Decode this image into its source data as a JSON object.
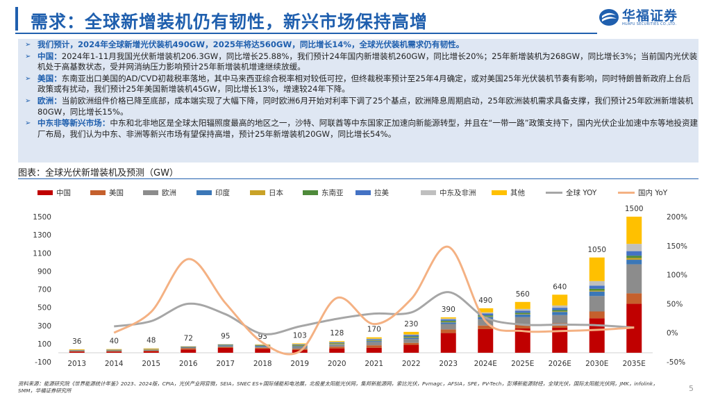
{
  "header": {
    "title": "需求：全球新增装机仍有韧性，新兴市场保持高增",
    "logo_cn": "华福证券",
    "logo_en": "HUAFU SECURITIES CO.,LTD."
  },
  "bullets": [
    {
      "label": "",
      "text": "我们预计，2024年全球新增光伏装机490GW，2025年将达560GW，同比增长14%，全球光伏装机需求仍有韧性。"
    },
    {
      "label": "中国：",
      "text": "2024年1-11月我国光伏新增装机206.3GW，同比增长25.88%，我们预计24年国内新增装机260GW，同比增长20%；25年新增装机为268GW，同比增长3%；当前国内光伏装机处于高基数状态，受并网消纳压力影响预计25年新增装机增速继续放缓。"
    },
    {
      "label": "美国：",
      "text": "东南亚出口美国的AD/CVD初裁税率落地，其中马来西亚综合税率相对较低可控，但终裁税率预计至25年4月确定，或对美国25年光伏装机节奏有影响，同时特朗普新政府上台后政策或有扰动，我们预计25年美国新增装机45GW，同比增长13%，增速较24年下降。"
    },
    {
      "label": "欧洲：",
      "text": "当前欧洲组件价格已降至底部，成本端实现了大幅下降，同时欧洲6月开始对利率下调了25个基点，欧洲降息周期启动，25年欧洲装机需求具备支撑，我们预计25年欧洲新增装机80GW，同比增长15%。"
    },
    {
      "label": "中东非等新兴市场：",
      "text": "中东和北非地区是全球太阳辐照度最高的地区之一，沙特、阿联酋等中东国家正加速向新能源转型，并且在“一带一路”政策支持下，国内光伏企业加速中东等地投资建厂布局，我们认为中东、非洲等新兴市场有望保持高增，预计25年新增装机20GW，同比增长54%。"
    }
  ],
  "chart_title": "图表：全球光伏新增装机及预测（GW）",
  "chart_data": {
    "type": "bar",
    "stacked": true,
    "categories": [
      "2013",
      "2014",
      "2015",
      "2016",
      "2017",
      "2018",
      "2019",
      "2020",
      "2021",
      "2022",
      "2023",
      "2024E",
      "2025E",
      "2026E",
      "2030E",
      "2035E"
    ],
    "series": [
      {
        "name": "中国",
        "color": "#c00000",
        "values": [
          11,
          11,
          15,
          35,
          53,
          44,
          30,
          48,
          55,
          87,
          217,
          260,
          268,
          275,
          380,
          540
        ]
      },
      {
        "name": "美国",
        "color": "#c5602d",
        "values": [
          5,
          6,
          7,
          15,
          11,
          11,
          13,
          19,
          27,
          22,
          40,
          40,
          45,
          50,
          75,
          115
        ]
      },
      {
        "name": "欧洲",
        "color": "#8c8c8c",
        "values": [
          11,
          8,
          8,
          7,
          9,
          12,
          21,
          22,
          37,
          42,
          60,
          70,
          80,
          90,
          170,
          320
        ]
      },
      {
        "name": "印度",
        "color": "#3b77b7",
        "values": [
          1,
          1,
          2,
          4,
          9,
          9,
          9,
          4,
          10,
          14,
          18,
          25,
          30,
          35,
          50,
          50
        ]
      },
      {
        "name": "日本",
        "color": "#c9a227",
        "values": [
          7,
          9,
          10,
          8,
          7,
          6,
          7,
          8,
          6,
          6,
          6,
          5,
          5,
          6,
          10,
          20
        ]
      },
      {
        "name": "东南亚",
        "color": "#4e8a3a",
        "values": [
          0,
          0,
          0,
          1,
          1,
          1,
          6,
          6,
          5,
          9,
          12,
          12,
          13,
          15,
          20,
          25
        ]
      },
      {
        "name": "拉美",
        "color": "#4472c4",
        "values": [
          0,
          1,
          2,
          1,
          3,
          4,
          6,
          7,
          10,
          15,
          15,
          20,
          22,
          25,
          35,
          50
        ]
      },
      {
        "name": "中东及非洲",
        "color": "#bfbfbf",
        "values": [
          0,
          1,
          1,
          1,
          2,
          2,
          3,
          4,
          5,
          7,
          9,
          13,
          20,
          25,
          50,
          80
        ]
      },
      {
        "name": "其他",
        "color": "#ffc000",
        "values": [
          1,
          3,
          3,
          0,
          0,
          4,
          8,
          10,
          15,
          28,
          13,
          45,
          77,
          119,
          260,
          300
        ]
      }
    ],
    "totals": [
      36,
      40,
      48,
      72,
      95,
      93,
      103,
      128,
      170,
      230,
      390,
      490,
      560,
      640,
      1050,
      1500
    ],
    "lines": [
      {
        "name": "全球 YOY",
        "color": "#a6a6a6",
        "axis": "right",
        "values": [
          null,
          11,
          20,
          50,
          32,
          -2,
          11,
          24,
          33,
          35,
          70,
          26,
          14,
          14,
          13,
          9
        ]
      },
      {
        "name": "国内 YoY",
        "color": "#f4b183",
        "axis": "right",
        "values": [
          null,
          0,
          36,
          127,
          51,
          -17,
          -32,
          60,
          15,
          58,
          148,
          20,
          3,
          3,
          5,
          9
        ]
      }
    ],
    "ylim": [
      -100,
      1500
    ],
    "yticks": [
      -100,
      100,
      300,
      500,
      700,
      900,
      1100,
      1300,
      1500
    ],
    "y2lim": [
      -50,
      200
    ],
    "y2ticks": [
      "-50%",
      "0%",
      "50%",
      "100%",
      "150%",
      "200%"
    ],
    "legend": "top"
  },
  "source": "资料来源：能源研究院《世界能源统计年鉴》2023、2024版，CPIA，光伏产业网官微，SEIA，SNEC ES+国际储能和电池展，北极星太阳能光伏网，集邦新能源网，索比光伏，Pvmagc，AFSIA，SPE，PV-Tech，彭博新能源财经，全球光伏，国际太阳能光伏网，JMK，infolink，SMM，华福证券研究所",
  "page_number": "5"
}
